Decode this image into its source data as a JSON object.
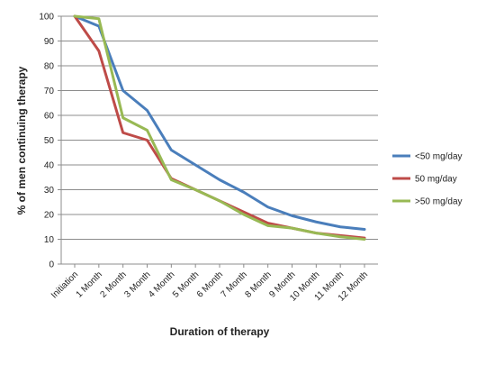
{
  "chart_data": {
    "type": "line",
    "title": "",
    "xlabel": "Duration of therapy",
    "ylabel": "% of men continuing therapy",
    "categories": [
      "Initiation",
      "1 Month",
      "2 Month",
      "3 Month",
      "4 Month",
      "5 Month",
      "6 Month",
      "7 Month",
      "8 Month",
      "9 Month",
      "10 Month",
      "11 Month",
      "12 Month"
    ],
    "ylim": [
      0,
      100
    ],
    "yticks": [
      0,
      10,
      20,
      30,
      40,
      50,
      60,
      70,
      80,
      90,
      100
    ],
    "grid": true,
    "legend_position": "right",
    "series": [
      {
        "name": "<50 mg/day",
        "color": "#4a7ebb",
        "values": [
          100,
          96,
          70,
          62,
          46,
          40,
          34,
          29,
          23,
          19.5,
          17,
          15,
          14
        ]
      },
      {
        "name": "50 mg/day",
        "color": "#be4b48",
        "values": [
          100,
          86,
          53,
          50,
          34.5,
          30,
          25.5,
          21,
          16.5,
          14.5,
          12.5,
          11.5,
          10.5
        ]
      },
      {
        "name": ">50 mg/day",
        "color": "#98b954",
        "values": [
          100,
          99,
          59,
          54,
          34,
          30,
          25.5,
          20,
          15.5,
          14.5,
          12.5,
          11,
          10
        ]
      }
    ]
  }
}
